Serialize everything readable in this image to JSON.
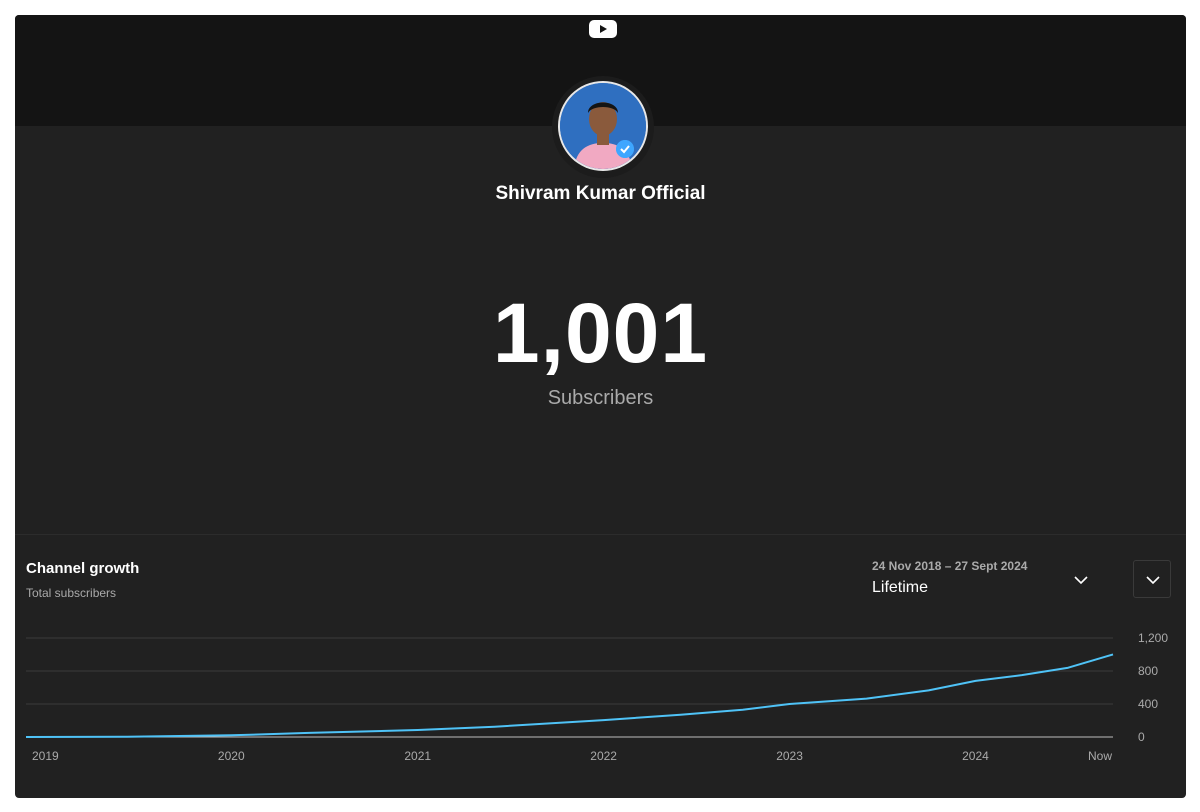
{
  "colors": {
    "card_bg": "#212121",
    "banner_bg": "#141414",
    "accent": "#3ea6ff",
    "line": "#4fc3f7"
  },
  "icons": {
    "logo": "youtube-icon",
    "verified": "verified-check-icon",
    "dropdown": "chevron-down-icon"
  },
  "channel": {
    "name": "Shivram Kumar Official",
    "subscriber_count": "1,001",
    "subscriber_label": "Subscribers"
  },
  "growth": {
    "title": "Channel growth",
    "subtitle": "Total subscribers",
    "date_range": "24 Nov 2018 – 27 Sept 2024",
    "period": "Lifetime"
  },
  "chart_data": {
    "type": "line",
    "x_ticks": [
      "2019",
      "2020",
      "2021",
      "2022",
      "2023",
      "2024",
      "Now"
    ],
    "y_ticks": [
      "0",
      "400",
      "800",
      "1,200"
    ],
    "ylim": [
      0,
      1200
    ],
    "y_axis_side": "right",
    "grid": true,
    "series": [
      {
        "values": [
          {
            "x": "2018-11-24",
            "y": 0
          },
          {
            "x": "2019-06-01",
            "y": 2
          },
          {
            "x": "2020-01-01",
            "y": 20
          },
          {
            "x": "2020-06-01",
            "y": 50
          },
          {
            "x": "2021-01-01",
            "y": 85
          },
          {
            "x": "2021-06-01",
            "y": 125
          },
          {
            "x": "2022-01-01",
            "y": 205
          },
          {
            "x": "2022-06-01",
            "y": 270
          },
          {
            "x": "2022-10-01",
            "y": 330
          },
          {
            "x": "2023-01-01",
            "y": 400
          },
          {
            "x": "2023-06-01",
            "y": 465
          },
          {
            "x": "2023-10-01",
            "y": 565
          },
          {
            "x": "2024-01-01",
            "y": 680
          },
          {
            "x": "2024-04-01",
            "y": 750
          },
          {
            "x": "2024-07-01",
            "y": 840
          },
          {
            "x": "2024-09-27",
            "y": 1001
          }
        ]
      }
    ]
  }
}
